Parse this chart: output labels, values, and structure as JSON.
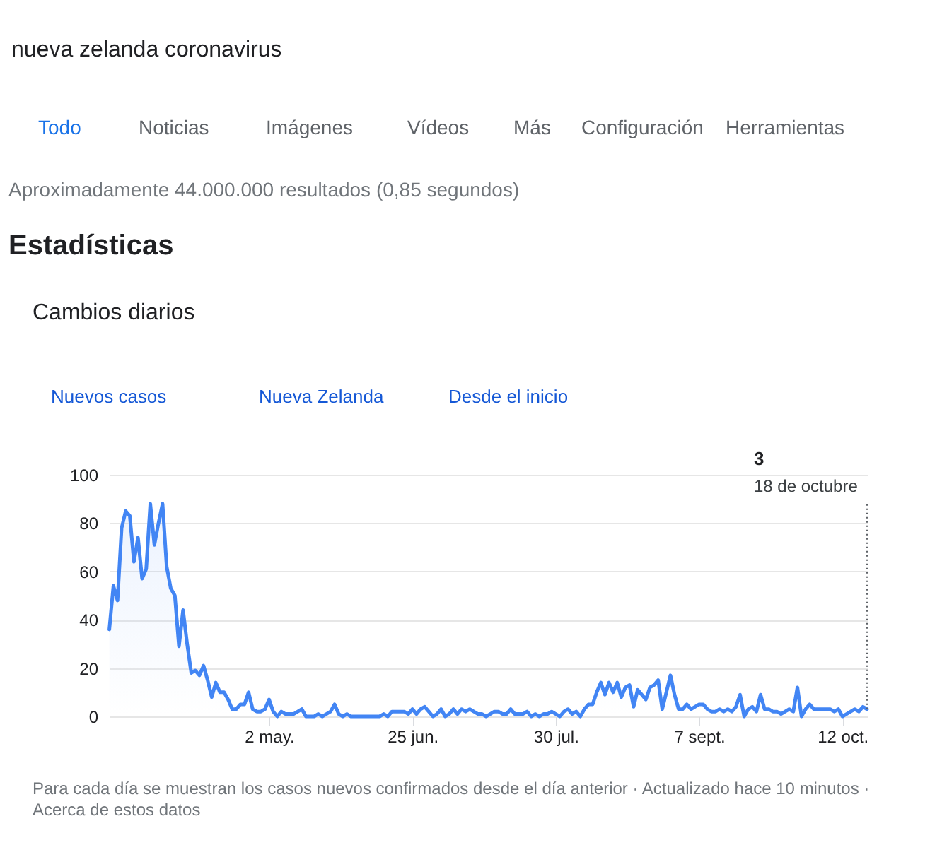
{
  "chart_data": {
    "type": "area",
    "title": "Cambios diarios",
    "categories": [
      null,
      null,
      null,
      null,
      null,
      null,
      null,
      null,
      null,
      null,
      null,
      null,
      null,
      null,
      null,
      null,
      null,
      null,
      null,
      null,
      null,
      null,
      null,
      null,
      null,
      null,
      null,
      null,
      null,
      null,
      null,
      null,
      null,
      null,
      null,
      null,
      null,
      null,
      null,
      "2 may.",
      null,
      null,
      null,
      null,
      null,
      null,
      null,
      null,
      null,
      null,
      null,
      null,
      null,
      null,
      null,
      null,
      null,
      null,
      null,
      null,
      null,
      null,
      null,
      null,
      null,
      null,
      null,
      null,
      null,
      null,
      null,
      null,
      null,
      null,
      "25 jun.",
      null,
      null,
      null,
      null,
      null,
      null,
      null,
      null,
      null,
      null,
      null,
      null,
      null,
      null,
      null,
      null,
      null,
      null,
      null,
      null,
      null,
      null,
      null,
      null,
      null,
      null,
      null,
      null,
      null,
      null,
      null,
      null,
      null,
      null,
      "30 jul.",
      null,
      null,
      null,
      null,
      null,
      null,
      null,
      null,
      null,
      null,
      null,
      null,
      null,
      null,
      null,
      null,
      null,
      null,
      null,
      null,
      null,
      null,
      null,
      null,
      null,
      null,
      null,
      null,
      null,
      null,
      null,
      null,
      null,
      null,
      "7 sept.",
      null,
      null,
      null,
      null,
      null,
      null,
      null,
      null,
      null,
      null,
      null,
      null,
      null,
      null,
      null,
      null,
      null,
      null,
      null,
      null,
      null,
      null,
      null,
      null,
      null,
      null,
      null,
      null,
      null,
      null,
      null,
      null,
      null,
      null,
      "12 oct.",
      null,
      null,
      null,
      null,
      null,
      null
    ],
    "values": [
      36,
      54,
      48,
      78,
      85,
      83,
      64,
      74,
      57,
      61,
      88,
      71,
      80,
      88,
      62,
      53,
      50,
      29,
      44,
      30,
      18,
      19,
      17,
      21,
      15,
      8,
      14,
      10,
      10,
      7,
      3,
      3,
      5,
      5,
      10,
      3,
      2,
      2,
      3,
      7,
      2,
      0,
      2,
      1,
      1,
      1,
      2,
      3,
      0,
      0,
      0,
      1,
      0,
      1,
      2,
      5,
      1,
      0,
      1,
      0,
      0,
      0,
      0,
      0,
      0,
      0,
      0,
      1,
      0,
      2,
      2,
      2,
      2,
      1,
      3,
      1,
      3,
      4,
      2,
      0,
      1,
      3,
      0,
      1,
      3,
      1,
      3,
      2,
      3,
      2,
      1,
      1,
      0,
      1,
      2,
      2,
      1,
      1,
      3,
      1,
      1,
      1,
      2,
      0,
      1,
      0,
      1,
      1,
      2,
      1,
      0,
      2,
      3,
      1,
      2,
      0,
      3,
      5,
      5,
      10,
      14,
      9,
      14,
      10,
      14,
      8,
      12,
      13,
      4,
      11,
      9,
      7,
      12,
      13,
      15,
      3,
      10,
      17,
      9,
      3,
      3,
      5,
      3,
      4,
      5,
      5,
      3,
      2,
      2,
      3,
      2,
      3,
      2,
      4,
      9,
      0,
      3,
      4,
      2,
      9,
      3,
      3,
      2,
      2,
      1,
      2,
      3,
      2,
      12,
      0,
      3,
      5,
      3,
      3,
      3,
      3,
      3,
      2,
      3,
      0,
      1,
      2,
      3,
      2,
      4,
      3
    ],
    "color": "#4285f4",
    "ylim": [
      0,
      100
    ],
    "yticks": [
      0,
      20,
      40,
      60,
      80,
      100
    ],
    "grid": "y",
    "annotations": [
      "nueva zelanda coronavirus",
      "Todo",
      "Noticias",
      "Imágenes",
      "Vídeos",
      "Más",
      "Configuración",
      "Herramientas",
      "Aproximadamente 44.000.000 resultados (0,85 segundos)",
      "Estadísticas",
      "Nuevos casos",
      "Nueva Zelanda",
      "Desde el inicio",
      "3",
      "18 de octubre",
      "Para cada día se muestran los casos nuevos confirmados desde el día anterior · Actualizado hace 10 minutos ·",
      "Acerca de estos datos"
    ]
  }
}
